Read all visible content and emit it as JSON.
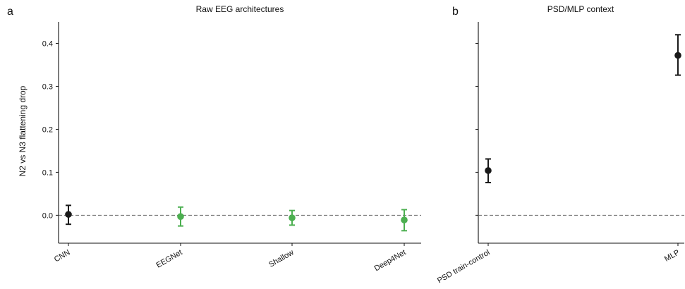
{
  "chart_data": [
    {
      "type": "scatter",
      "panel_letter": "a",
      "title": "Raw EEG architectures",
      "ylabel": "N2 vs N3 flattening drop",
      "xlabel": "",
      "ylim": [
        -0.065,
        0.45
      ],
      "yticks": [
        0.0,
        0.1,
        0.2,
        0.3,
        0.4
      ],
      "ytick_labels": [
        "0.0",
        "0.1",
        "0.2",
        "0.3",
        "0.4"
      ],
      "reference_line": 0,
      "grid": false,
      "categories": [
        "CNN",
        "EEGNet",
        "Shallow",
        "Deep4Net"
      ],
      "values": [
        0.002,
        -0.003,
        -0.006,
        -0.011
      ],
      "error_low": [
        -0.021,
        -0.025,
        -0.023,
        -0.036
      ],
      "error_high": [
        0.023,
        0.019,
        0.011,
        0.013
      ],
      "colors": [
        "#1a1a1a",
        "#4caf50",
        "#4caf50",
        "#4caf50"
      ]
    },
    {
      "type": "scatter",
      "panel_letter": "b",
      "title": "PSD/MLP context",
      "ylabel": "",
      "xlabel": "",
      "ylim": [
        -0.065,
        0.45
      ],
      "yticks": [
        0.0,
        0.1,
        0.2,
        0.3,
        0.4
      ],
      "ytick_labels": [],
      "reference_line": 0,
      "grid": false,
      "categories": [
        "PSD train-control",
        "MLP"
      ],
      "values": [
        0.104,
        0.372
      ],
      "error_low": [
        0.076,
        0.326
      ],
      "error_high": [
        0.131,
        0.42
      ],
      "colors": [
        "#1a1a1a",
        "#1a1a1a"
      ]
    }
  ]
}
